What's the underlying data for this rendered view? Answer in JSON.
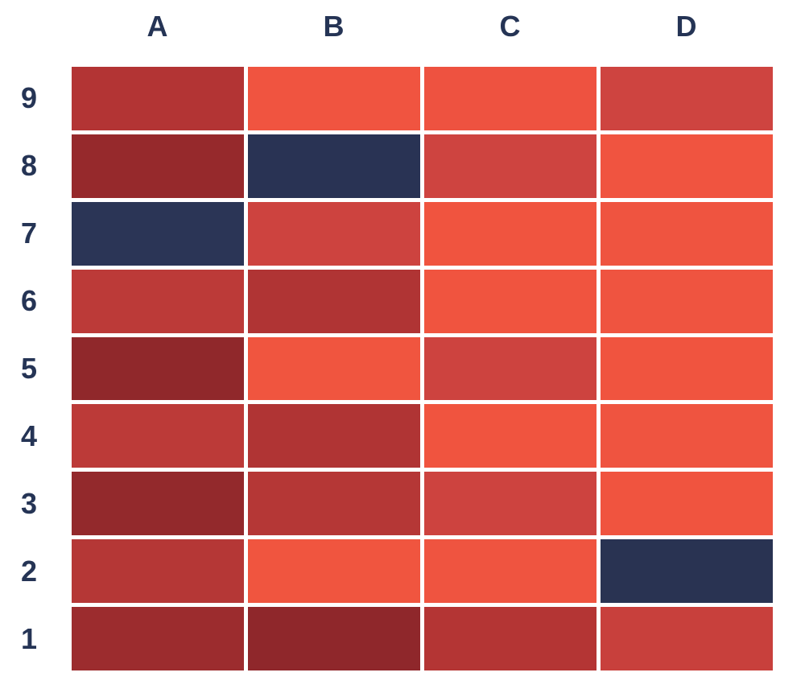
{
  "chart_data": {
    "type": "heatmap",
    "title": "",
    "xlabel": "",
    "ylabel": "",
    "columns": [
      "A",
      "B",
      "C",
      "D"
    ],
    "rows": [
      "9",
      "8",
      "7",
      "6",
      "5",
      "4",
      "3",
      "2",
      "1"
    ],
    "legend": "none",
    "grid_on": false,
    "cell_colors": [
      [
        "#b33434",
        "#f05440",
        "#ee5240",
        "#ce4440"
      ],
      [
        "#96292c",
        "#293354",
        "#ce4440",
        "#f05440"
      ],
      [
        "#2b3556",
        "#cd433f",
        "#f0543f",
        "#ef5440"
      ],
      [
        "#bc3a38",
        "#b03434",
        "#f0543f",
        "#ef5440"
      ],
      [
        "#90282b",
        "#f0553f",
        "#cd433f",
        "#f0543f"
      ],
      [
        "#bc3a38",
        "#b03434",
        "#f0543f",
        "#ef5440"
      ],
      [
        "#93292c",
        "#b53736",
        "#cd433f",
        "#f0543f"
      ],
      [
        "#b53736",
        "#f0553f",
        "#ef5440",
        "#293352"
      ],
      [
        "#9c2c2e",
        "#8f272b",
        "#b43534",
        "#c8403c"
      ]
    ],
    "palette": {
      "outlier_navy": "#293354",
      "darkest_red": "#8f272b",
      "dark_red": "#b33434",
      "medium_red": "#cd433f",
      "bright_orange_red": "#f0553f"
    },
    "label_color": "#253455",
    "background": "#ffffff",
    "gap_color": "#ffffff"
  }
}
